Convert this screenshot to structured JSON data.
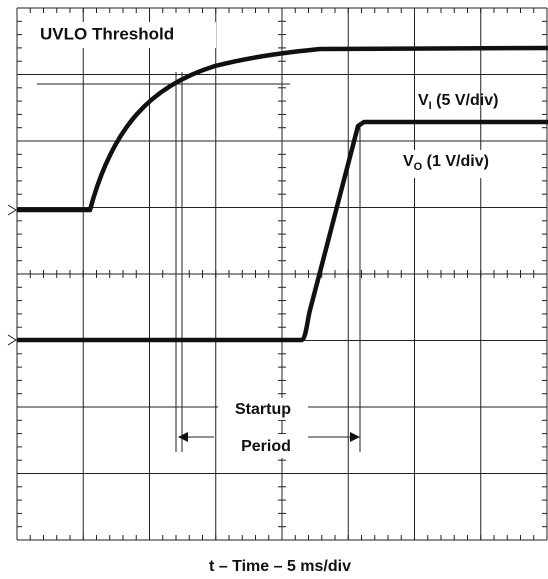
{
  "labels": {
    "uvlo": "UVLO Threshold",
    "vi": {
      "main": "V",
      "sub": "I",
      "rest": " (5 V/div)"
    },
    "vo": {
      "main": "V",
      "sub": "O",
      "rest": " (1 V/div)"
    },
    "startup": "Startup",
    "period": "Period",
    "xaxis": "t – Time – 5 ms/div"
  }
}
